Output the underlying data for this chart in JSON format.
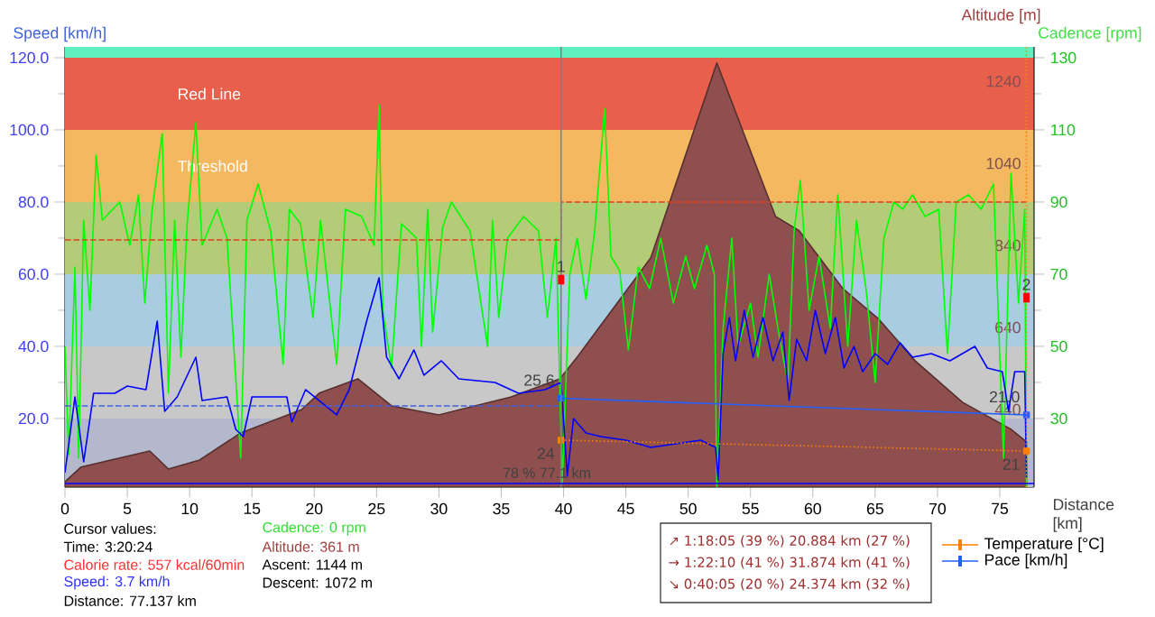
{
  "chart_data": {
    "type": "line",
    "xlabel": "Distance [km]",
    "ylabel": "Speed [km/h]",
    "y2label": "Cadence [rpm]",
    "y3label": "Altitude [m]",
    "xlim": [
      0,
      77.75
    ],
    "xticks": [
      0,
      5,
      10,
      15,
      20,
      25,
      30,
      35,
      40,
      45,
      50,
      55,
      60,
      65,
      70,
      75
    ],
    "ylim": [
      1,
      123
    ],
    "yticks": [
      {
        "value": 20,
        "label": "20.0"
      },
      {
        "value": 40,
        "label": "40.0"
      },
      {
        "value": 60,
        "label": "60.0"
      },
      {
        "value": 80,
        "label": "80.0"
      },
      {
        "value": 100,
        "label": "100.0"
      },
      {
        "value": 120,
        "label": "120.0"
      }
    ],
    "y2lim": [
      11,
      133
    ],
    "y2ticks": [
      30,
      50,
      70,
      90,
      110,
      130
    ],
    "y3lim": [
      251,
      1324
    ],
    "y3ticks": [
      440,
      640,
      840,
      1040,
      1240
    ],
    "bands": [
      {
        "axis": "y",
        "from": 1,
        "to": 20,
        "color": "#b4b8cc"
      },
      {
        "axis": "y",
        "from": 20,
        "to": 40,
        "color": "#c8c8c8"
      },
      {
        "axis": "y",
        "from": 40,
        "to": 60,
        "color": "#a8cce0"
      },
      {
        "axis": "y",
        "from": 60,
        "to": 80,
        "color": "#b4cc78"
      },
      {
        "axis": "y",
        "from": 80,
        "to": 100,
        "color": "#f4b860",
        "label": "Threshold"
      },
      {
        "axis": "y",
        "from": 100,
        "to": 120,
        "color": "#e8604c",
        "label": "Red Line"
      },
      {
        "axis": "y",
        "from": 120,
        "to": 123,
        "color": "#60f0c0"
      }
    ],
    "ref_lines": [
      {
        "axis": "x",
        "value": 39.8,
        "color": "#808080"
      },
      {
        "axis": "x",
        "value": 77.137,
        "color": "#ff8000",
        "line_style": "dotted"
      },
      {
        "axis": "y",
        "value": 2,
        "color": "#0000ff"
      }
    ],
    "series": [
      {
        "type": "area",
        "axis": "y3",
        "color": "#8f4f4f",
        "x": [
          0,
          1.3,
          6.8,
          8.3,
          10.8,
          14.1,
          19,
          20.4,
          23.5,
          26.2,
          30,
          35.8,
          39.7,
          41.1,
          47,
          52.3,
          57,
          58.9,
          62.4,
          65.3,
          68.2,
          72,
          75.9,
          77.14
        ],
        "values": [
          264,
          300,
          339,
          295,
          317,
          383,
          440,
          480,
          515,
          449,
          427,
          471,
          515,
          568,
          810,
          1285,
          911,
          876,
          735,
          660,
          559,
          458,
          392,
          361
        ]
      },
      {
        "axis": "y2",
        "color": "#00ff00",
        "x": [
          0,
          0.3,
          0.8,
          1.1,
          1.5,
          2,
          2.5,
          3,
          4.4,
          5.2,
          5.9,
          6.4,
          7,
          7.8,
          8.3,
          8.8,
          9.3,
          9.8,
          10.5,
          11,
          12.2,
          13,
          14.1,
          14.6,
          15.5,
          16.5,
          17.5,
          18,
          18.9,
          19.9,
          20.5,
          21.8,
          22.5,
          23.8,
          24.8,
          25.2,
          25.5,
          26.2,
          27,
          28.2,
          28.6,
          29.1,
          29.5,
          30.3,
          31,
          32.5,
          33.9,
          34.3,
          34.8,
          35.5,
          36.8,
          38,
          38.7,
          39.4,
          39.9,
          40.5,
          41.1,
          41.8,
          42.5,
          43.3,
          43.8,
          44.5,
          45.2,
          46,
          46.9,
          47.8,
          48.8,
          49.8,
          50.5,
          51.5,
          52.1,
          52.3,
          52.8,
          53.5,
          54,
          55,
          55.6,
          56.5,
          57.2,
          58,
          58.5,
          59,
          59.7,
          60.5,
          61.4,
          62,
          62.8,
          63.5,
          64.3,
          65,
          65.7,
          66.5,
          67.2,
          68,
          69,
          70.1,
          70.8,
          71.5,
          72.5,
          73.5,
          74.5,
          75.3,
          75.9,
          76.5,
          77,
          77.14
        ],
        "values": [
          50,
          20,
          72,
          19,
          85,
          60,
          103,
          85,
          90,
          78,
          92,
          62,
          88,
          109,
          37,
          85,
          47,
          84,
          112,
          78,
          88,
          80,
          19,
          85,
          95,
          82,
          45,
          88,
          84,
          58,
          85,
          45,
          88,
          86,
          78,
          117,
          60,
          44,
          84,
          80,
          50,
          88,
          54,
          83,
          90,
          82,
          50,
          85,
          58,
          80,
          86,
          82,
          58,
          80,
          12,
          70,
          80,
          63,
          82,
          116,
          75,
          71,
          49,
          72,
          66,
          80,
          62,
          75,
          66,
          78,
          70,
          11,
          55,
          80,
          50,
          62,
          47,
          70,
          55,
          40,
          82,
          96,
          60,
          75,
          55,
          92,
          50,
          85,
          65,
          40,
          80,
          90,
          88,
          92,
          86,
          88,
          48,
          90,
          92,
          88,
          95,
          19,
          98,
          62,
          88,
          11
        ]
      },
      {
        "color": "#0000ff",
        "x": [
          0,
          0.8,
          1.5,
          2.3,
          4,
          5,
          6.5,
          7.4,
          8,
          9,
          10.5,
          11,
          13,
          13.7,
          14.3,
          15,
          17.8,
          18.2,
          19.3,
          21.8,
          22.8,
          24.2,
          25.2,
          25.8,
          26.8,
          28,
          28.8,
          30.2,
          31.6,
          34.5,
          36.4,
          38.5,
          39.8,
          40.3,
          40.8,
          41.8,
          43,
          45,
          47,
          49,
          51,
          52.2,
          52.4,
          52.8,
          53.3,
          53.8,
          54.5,
          55.2,
          56,
          56.8,
          57.6,
          58.1,
          58.7,
          59.5,
          60.2,
          61,
          61.8,
          62.5,
          63.3,
          64,
          65,
          66,
          67,
          68,
          69.5,
          71,
          73,
          74,
          75.2,
          75.7,
          76.2,
          77,
          77.14
        ],
        "values": [
          5,
          26,
          8,
          27,
          27,
          29,
          28,
          47,
          22,
          26,
          37,
          25,
          26,
          17,
          15,
          26,
          26,
          19,
          28,
          21,
          28,
          47,
          59,
          37,
          31,
          39,
          32,
          36,
          31,
          30,
          27,
          28,
          30,
          4,
          20,
          16,
          15,
          14,
          12,
          13,
          14,
          12,
          3,
          38,
          48,
          36,
          50,
          37,
          48,
          36,
          44,
          25,
          42,
          36,
          50,
          38,
          48,
          34,
          40,
          33,
          38,
          35,
          41,
          37,
          38,
          36,
          40,
          34,
          33,
          22,
          33,
          33,
          3.7
        ]
      },
      {
        "color": "#e04020",
        "line_style": "dashed",
        "x": [
          0,
          39.8,
          39.8,
          77.14
        ],
        "values": [
          69.5,
          69.5,
          80,
          80
        ]
      },
      {
        "color": "#4060e0",
        "line_style": "dashed",
        "x": [
          0,
          39.8
        ],
        "values": [
          23.5,
          23.5
        ]
      },
      {
        "name": "Temperature [°C]",
        "axis": "y2",
        "color": "#ff8000",
        "line_style": "dotted",
        "marker": "square",
        "x": [
          39.8,
          77.14
        ],
        "values": [
          24,
          21
        ],
        "value_labels": [
          "24",
          "21"
        ]
      },
      {
        "name": "Pace [km/h]",
        "color": "#2060ff",
        "marker": "square",
        "x": [
          39.8,
          77.14
        ],
        "values": [
          25.6,
          21.0
        ],
        "value_labels": [
          "25.6",
          "21.0"
        ]
      }
    ],
    "legend": "bottom right",
    "annotations": [
      "78 % 77.1 km",
      "Cursor values:",
      "Time: 3:20:24",
      "Calorie rate: 557 kcal/60min",
      "Speed: 3.7 km/h",
      "Distance: 77.137 km",
      "Cadence: 0 rpm",
      "Altitude: 361 m",
      "Ascent: 1144 m",
      "Descent: 1072 m",
      "↗ 1:18:05 (39 %) 20.884 km (27 %)",
      "→ 1:22:10 (41 %) 31.874 km (41 %)",
      "↘ 0:40:05 (20 %) 24.374 km (32 %)",
      {
        "text": "1",
        "x": 39.8,
        "y": 58.5
      },
      {
        "text": "2",
        "x": 77.14,
        "y": 53.5
      }
    ]
  }
}
